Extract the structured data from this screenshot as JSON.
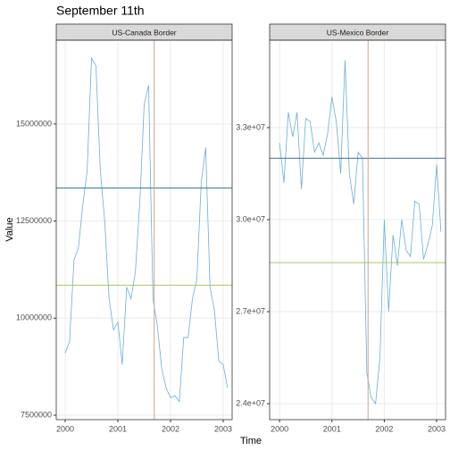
{
  "title": "September 11th",
  "x_label": "Time",
  "y_label": "Value",
  "chart_data": [
    {
      "type": "line",
      "title": "US-Canada Border",
      "x": [
        2000,
        2000.083,
        2000.167,
        2000.25,
        2000.333,
        2000.417,
        2000.5,
        2000.583,
        2000.667,
        2000.75,
        2000.833,
        2000.917,
        2001,
        2001.083,
        2001.167,
        2001.25,
        2001.333,
        2001.417,
        2001.5,
        2001.583,
        2001.667,
        2001.75,
        2001.833,
        2001.917,
        2002,
        2002.083,
        2002.167,
        2002.25,
        2002.333,
        2002.417,
        2002.5,
        2002.583,
        2002.667,
        2002.75,
        2002.833,
        2002.917,
        2003,
        2003.083
      ],
      "series": [
        {
          "color": "#6baed6",
          "values": [
            9100000,
            9400000,
            11500000,
            11800000,
            12900000,
            13800000,
            16700000,
            16500000,
            13800000,
            12500000,
            10500000,
            9700000,
            9900000,
            8800000,
            10800000,
            10500000,
            11200000,
            13000000,
            15500000,
            16000000,
            10500000,
            9800000,
            8700000,
            8200000,
            7950000,
            8000000,
            7850000,
            9500000,
            9500000,
            10500000,
            11000000,
            13500000,
            14400000,
            10800000,
            10200000,
            8900000,
            8800000,
            8200000
          ]
        }
      ],
      "hlines": [
        {
          "value": 13350000,
          "color": "#3b6f8f"
        },
        {
          "value": 10850000,
          "color": "#a9c66e"
        }
      ],
      "vline": {
        "value": 2001.69,
        "color": "#c9a68d"
      },
      "xlim": [
        1999.83,
        2003.17
      ],
      "xticks": [
        2000,
        2001,
        2002,
        2003
      ],
      "ylim": [
        7385000,
        17160000
      ],
      "yticks": [
        7500000,
        10000000,
        12500000,
        15000000
      ],
      "grid": true
    },
    {
      "type": "line",
      "title": "US-Mexico Border",
      "x": [
        2000,
        2000.083,
        2000.167,
        2000.25,
        2000.333,
        2000.417,
        2000.5,
        2000.583,
        2000.667,
        2000.75,
        2000.833,
        2000.917,
        2001,
        2001.083,
        2001.167,
        2001.25,
        2001.333,
        2001.417,
        2001.5,
        2001.583,
        2001.667,
        2001.75,
        2001.833,
        2001.917,
        2002,
        2002.083,
        2002.167,
        2002.25,
        2002.333,
        2002.417,
        2002.5,
        2002.583,
        2002.667,
        2002.75,
        2002.833,
        2002.917,
        2003,
        2003.083
      ],
      "series": [
        {
          "color": "#6baed6",
          "values": [
            32500000,
            31200000,
            33500000,
            32700000,
            33500000,
            31000000,
            33300000,
            33200000,
            32200000,
            32500000,
            32100000,
            32800000,
            34000000,
            33200000,
            31500000,
            35200000,
            31500000,
            30500000,
            32200000,
            32000000,
            25000000,
            24200000,
            24000000,
            25500000,
            30000000,
            27000000,
            29500000,
            28500000,
            30000000,
            29000000,
            28800000,
            30600000,
            30500000,
            28700000,
            29200000,
            29800000,
            31800000,
            29600000
          ]
        }
      ],
      "hlines": [
        {
          "value": 32000000,
          "color": "#3b6f8f"
        },
        {
          "value": 28600000,
          "color": "#a9c66e"
        }
      ],
      "vline": {
        "value": 2001.69,
        "color": "#c9a68d"
      },
      "xlim": [
        1999.81,
        2003.17
      ],
      "xticks": [
        2000,
        2001,
        2002,
        2003
      ],
      "ylim": [
        23480000,
        35850000
      ],
      "yticks": [
        {
          "value": 24000000,
          "label": "2.4e+07"
        },
        {
          "value": 27000000,
          "label": "2.7e+07"
        },
        {
          "value": 30000000,
          "label": "3.0e+07"
        },
        {
          "value": 33000000,
          "label": "3.3e+07"
        }
      ],
      "grid": true
    }
  ]
}
